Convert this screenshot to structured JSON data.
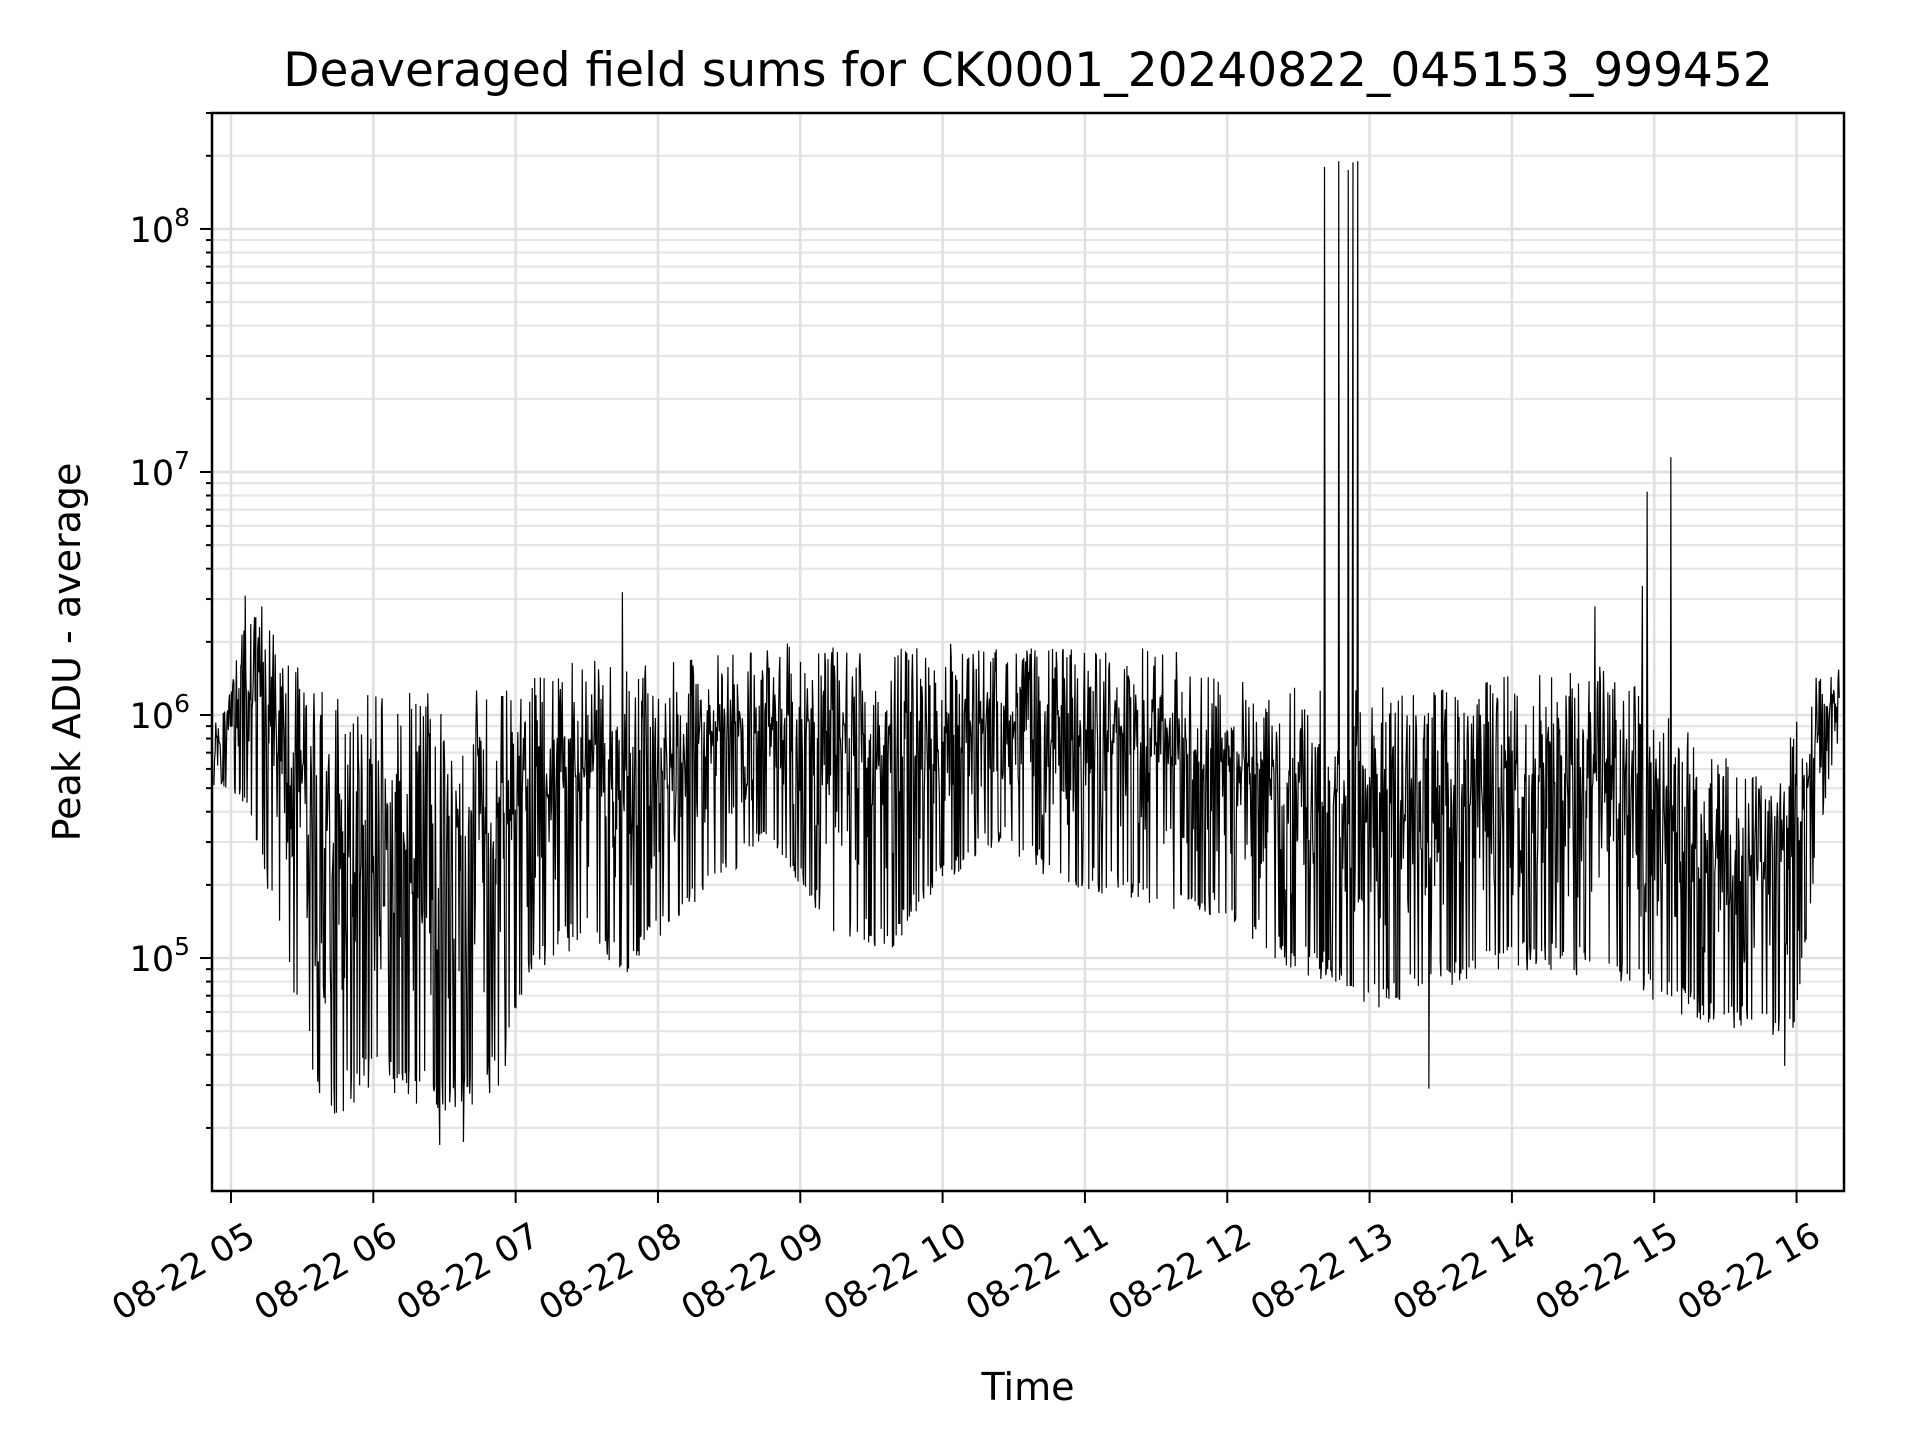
{
  "chart_data": {
    "type": "line",
    "title": "Deaveraged field sums for CK0001_20240822_045153_999452",
    "xlabel": "Time",
    "ylabel": "Peak ADU - average",
    "xscale": "time",
    "yscale": "log",
    "xlim": [
      "2024-08-22 04:52",
      "2024-08-22 16:20"
    ],
    "ylim": [
      11000,
      300000000
    ],
    "grid": true,
    "x_tick_labels": [
      "08-22 05",
      "08-22 06",
      "08-22 07",
      "08-22 08",
      "08-22 09",
      "08-22 10",
      "08-22 11",
      "08-22 12",
      "08-22 13",
      "08-22 14",
      "08-22 15",
      "08-22 16"
    ],
    "x_tick_hours": [
      5,
      6,
      7,
      8,
      9,
      10,
      11,
      12,
      13,
      14,
      15,
      16
    ],
    "y_ticks": [
      {
        "value": 100000,
        "base": "10",
        "exp": "5"
      },
      {
        "value": 1000000,
        "base": "10",
        "exp": "6"
      },
      {
        "value": 10000000,
        "base": "10",
        "exp": "7"
      },
      {
        "value": 100000000,
        "base": "10",
        "exp": "8"
      }
    ],
    "series": [
      {
        "color": "#000000",
        "envelope_hours": [
          4.88,
          5.0,
          5.1,
          5.3,
          5.5,
          5.6,
          5.75,
          6.0,
          6.3,
          6.6,
          6.9,
          7.0,
          7.2,
          7.5,
          7.75,
          8.0,
          8.4,
          8.8,
          9.2,
          9.6,
          10.0,
          10.4,
          10.8,
          11.2,
          11.6,
          12.0,
          12.4,
          12.7,
          13.0,
          13.4,
          13.8,
          14.2,
          14.6,
          14.9,
          15.1,
          15.35,
          15.6,
          15.85,
          16.0,
          16.15,
          16.3
        ],
        "envelope_high": [
          900000,
          1300000,
          2600000,
          2500000,
          1500000,
          1300000,
          1300000,
          1300000,
          1250000,
          1300000,
          1300000,
          1300000,
          1600000,
          1700000,
          1600000,
          1600000,
          1800000,
          2000000,
          1900000,
          1900000,
          2000000,
          1900000,
          1900000,
          1900000,
          1900000,
          1400000,
          1400000,
          1300000,
          1300000,
          1300000,
          1400000,
          1700000,
          1600000,
          1300000,
          1100000,
          700000,
          650000,
          500000,
          1000000,
          1500000,
          1700000
        ],
        "envelope_low": [
          500000,
          500000,
          400000,
          150000,
          50000,
          25000,
          22000,
          30000,
          25000,
          22000,
          28000,
          60000,
          90000,
          120000,
          80000,
          120000,
          200000,
          300000,
          130000,
          100000,
          200000,
          300000,
          200000,
          180000,
          150000,
          150000,
          90000,
          80000,
          60000,
          70000,
          80000,
          90000,
          80000,
          70000,
          60000,
          55000,
          50000,
          48000,
          50000,
          300000,
          800000
        ],
        "spikes": [
          {
            "time": "2024-08-22 05:06",
            "value": 3100000
          },
          {
            "time": "2024-08-22 05:13",
            "value": 2800000
          },
          {
            "time": "2024-08-22 07:45",
            "value": 3200000
          },
          {
            "time": "2024-08-22 12:41",
            "value": 180000000
          },
          {
            "time": "2024-08-22 12:47",
            "value": 190000000
          },
          {
            "time": "2024-08-22 12:51",
            "value": 175000000
          },
          {
            "time": "2024-08-22 12:53",
            "value": 188000000
          },
          {
            "time": "2024-08-22 12:55",
            "value": 190000000
          },
          {
            "time": "2024-08-22 14:57",
            "value": 8300000
          },
          {
            "time": "2024-08-22 15:07",
            "value": 11500000
          },
          {
            "time": "2024-08-22 14:55",
            "value": 3400000
          },
          {
            "time": "2024-08-22 14:35",
            "value": 2800000
          }
        ],
        "deep_dips": [
          {
            "time": "2024-08-22 06:28",
            "value": 17000
          },
          {
            "time": "2024-08-22 06:38",
            "value": 17500
          },
          {
            "time": "2024-08-22 13:25",
            "value": 29000
          },
          {
            "time": "2024-08-22 15:55",
            "value": 36000
          }
        ]
      }
    ]
  }
}
